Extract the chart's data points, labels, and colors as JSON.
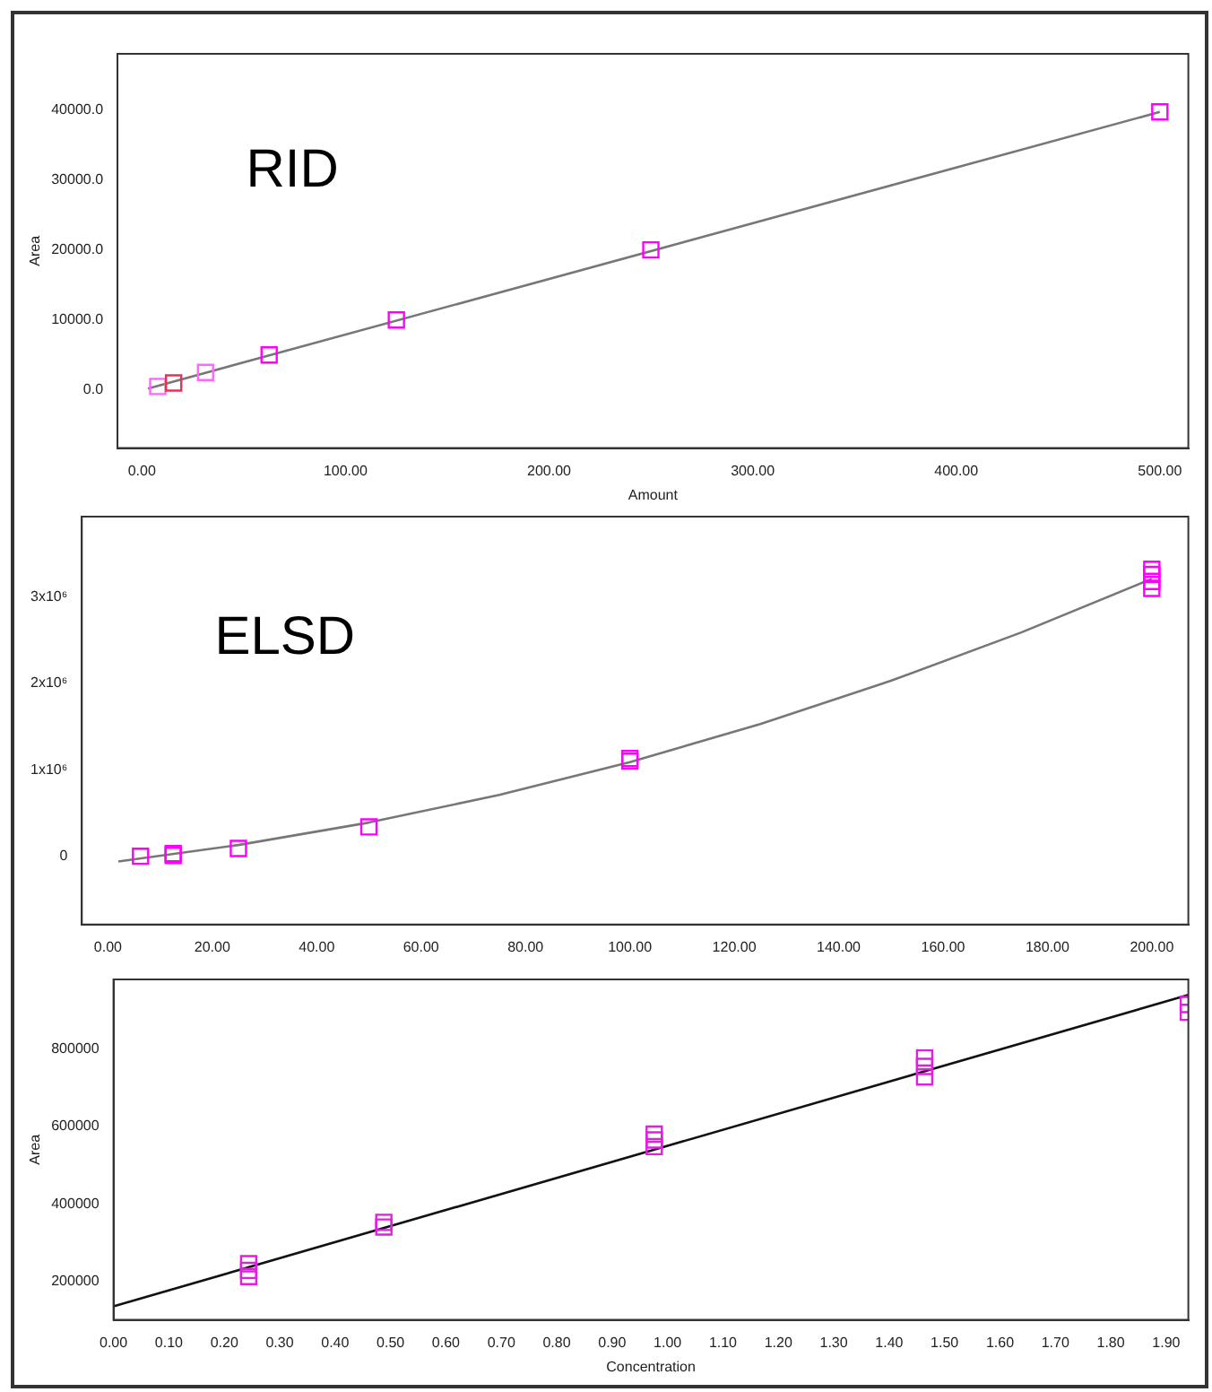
{
  "chart_data": [
    {
      "type": "scatter",
      "xlabel": "Amount",
      "ylabel": "Area",
      "annotations": [
        "RID"
      ],
      "xlim": [
        -12,
        514
      ],
      "ylim": [
        -8300,
        48000
      ],
      "xticks": [
        {
          "value": 0,
          "label": "0.00"
        },
        {
          "value": 100,
          "label": "100.00"
        },
        {
          "value": 200,
          "label": "200.00"
        },
        {
          "value": 300,
          "label": "300.00"
        },
        {
          "value": 400,
          "label": "400.00"
        },
        {
          "value": 500,
          "label": "500.00"
        }
      ],
      "yticks": [
        {
          "value": 0,
          "label": "0.0"
        },
        {
          "value": 10000,
          "label": "10000.0"
        },
        {
          "value": 20000,
          "label": "20000.0"
        },
        {
          "value": 30000,
          "label": "30000.0"
        },
        {
          "value": 40000,
          "label": "40000.0"
        }
      ],
      "grid": false,
      "legend": false,
      "series": [
        {
          "type": "scatter",
          "marker": "square",
          "x": [
            7.8,
            15.6,
            31.25,
            62.5,
            125,
            250,
            500
          ],
          "values": [
            500,
            1000,
            2500,
            5000,
            10000,
            20000,
            39700
          ],
          "colors": [
            "#ff66ff",
            "#e8305a",
            "#ff66ff",
            "#ff00ff",
            "#ff00ff",
            "#ff00ff",
            "#ff00ff"
          ]
        },
        {
          "type": "line",
          "marker": "none",
          "color": "#777777",
          "x": [
            3,
            500
          ],
          "values": [
            200,
            39700
          ]
        }
      ]
    },
    {
      "type": "scatter",
      "annotations": [
        "ELSD"
      ],
      "xlim": [
        -5,
        207
      ],
      "ylim": [
        -790000,
        3930000
      ],
      "xticks": [
        {
          "value": 0,
          "label": "0.00"
        },
        {
          "value": 20,
          "label": "20.00"
        },
        {
          "value": 40,
          "label": "40.00"
        },
        {
          "value": 60,
          "label": "60.00"
        },
        {
          "value": 80,
          "label": "80.00"
        },
        {
          "value": 100,
          "label": "100.00"
        },
        {
          "value": 120,
          "label": "120.00"
        },
        {
          "value": 140,
          "label": "140.00"
        },
        {
          "value": 160,
          "label": "160.00"
        },
        {
          "value": 180,
          "label": "180.00"
        },
        {
          "value": 200,
          "label": "200.00"
        }
      ],
      "yticks": [
        0,
        {
          "value": 1000000,
          "label": "1x10⁶"
        },
        {
          "value": 2000000,
          "label": "2x10⁶"
        },
        {
          "value": 3000000,
          "label": "3x10⁶"
        }
      ],
      "grid": false,
      "legend": false,
      "series": [
        {
          "type": "scatter",
          "marker": "square",
          "color": "#ff00ff",
          "x": [
            6.25,
            12.5,
            12.5,
            25,
            50,
            100,
            100,
            200,
            200,
            200,
            200
          ],
          "values": [
            0,
            10000,
            30000,
            90000,
            340000,
            1100000,
            1130000,
            3100000,
            3180000,
            3260000,
            3320000
          ]
        },
        {
          "type": "line",
          "marker": "none",
          "color": "#777777",
          "x": [
            2,
            25,
            50,
            75,
            100,
            125,
            150,
            175,
            200
          ],
          "values": [
            -60000,
            130000,
            390000,
            710000,
            1090000,
            1530000,
            2030000,
            2590000,
            3210000
          ]
        }
      ]
    },
    {
      "type": "scatter",
      "xlabel": "Concentration",
      "ylabel": "Area",
      "xlim": [
        0,
        1.94
      ],
      "ylim": [
        100000,
        980000
      ],
      "xticks": [
        {
          "value": 0,
          "label": "0.00"
        },
        {
          "value": 0.1,
          "label": "0.10"
        },
        {
          "value": 0.2,
          "label": "0.20"
        },
        {
          "value": 0.3,
          "label": "0.30"
        },
        {
          "value": 0.4,
          "label": "0.40"
        },
        {
          "value": 0.5,
          "label": "0.50"
        },
        {
          "value": 0.6,
          "label": "0.60"
        },
        {
          "value": 0.7,
          "label": "0.70"
        },
        {
          "value": 0.8,
          "label": "0.80"
        },
        {
          "value": 0.9,
          "label": "0.90"
        },
        {
          "value": 1.0,
          "label": "1.00"
        },
        {
          "value": 1.1,
          "label": "1.10"
        },
        {
          "value": 1.2,
          "label": "1.20"
        },
        {
          "value": 1.3,
          "label": "1.30"
        },
        {
          "value": 1.4,
          "label": "1.40"
        },
        {
          "value": 1.5,
          "label": "1.50"
        },
        {
          "value": 1.6,
          "label": "1.60"
        },
        {
          "value": 1.7,
          "label": "1.70"
        },
        {
          "value": 1.8,
          "label": "1.80"
        },
        {
          "value": 1.9,
          "label": "1.90"
        }
      ],
      "yticks": [
        200000,
        400000,
        600000,
        800000
      ],
      "grid": false,
      "legend": false,
      "series": [
        {
          "type": "scatter",
          "marker": "square",
          "color": "#e020e0",
          "x": [
            0.244,
            0.244,
            0.244,
            0.488,
            0.488,
            0.976,
            0.976,
            0.976,
            1.464,
            1.464,
            1.464,
            1.94,
            1.94
          ],
          "values": [
            245000,
            228000,
            212000,
            352000,
            340000,
            580000,
            565000,
            548000,
            777000,
            755000,
            728000,
            915000,
            895000
          ]
        },
        {
          "type": "line",
          "marker": "none",
          "color": "#111111",
          "x": [
            0,
            1.94
          ],
          "values": [
            135000,
            940000
          ]
        }
      ]
    }
  ]
}
